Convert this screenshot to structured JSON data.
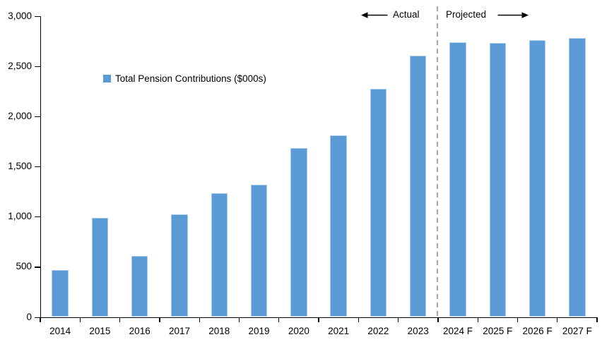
{
  "chart_data": {
    "type": "bar",
    "title": "",
    "legend": {
      "label": "Total Pension Contributions ($000s)"
    },
    "categories": [
      "2014",
      "2015",
      "2016",
      "2017",
      "2018",
      "2019",
      "2020",
      "2021",
      "2022",
      "2023",
      "2024 F",
      "2025 F",
      "2026 F",
      "2027 F"
    ],
    "values": [
      470,
      990,
      610,
      1020,
      1230,
      1320,
      1680,
      1810,
      2270,
      2600,
      2740,
      2730,
      2760,
      2780
    ],
    "ylim": [
      0,
      3000
    ],
    "ytick_interval": 500,
    "ytick_labels": [
      "0",
      "500",
      "1,000",
      "1,500",
      "2,000",
      "2,500",
      "3,000"
    ],
    "grid": false,
    "legend_position": "upper-left-inside",
    "colors": {
      "bar_fill": "#5B9BD5",
      "bar_border": "#A9CBEB",
      "axis": "#000000",
      "divider": "#A6A6A6",
      "arrow": "#000000",
      "text": "#000000"
    },
    "annotations": {
      "actual_label": "Actual",
      "projected_label": "Projected",
      "divider_after_category": "2023"
    }
  }
}
